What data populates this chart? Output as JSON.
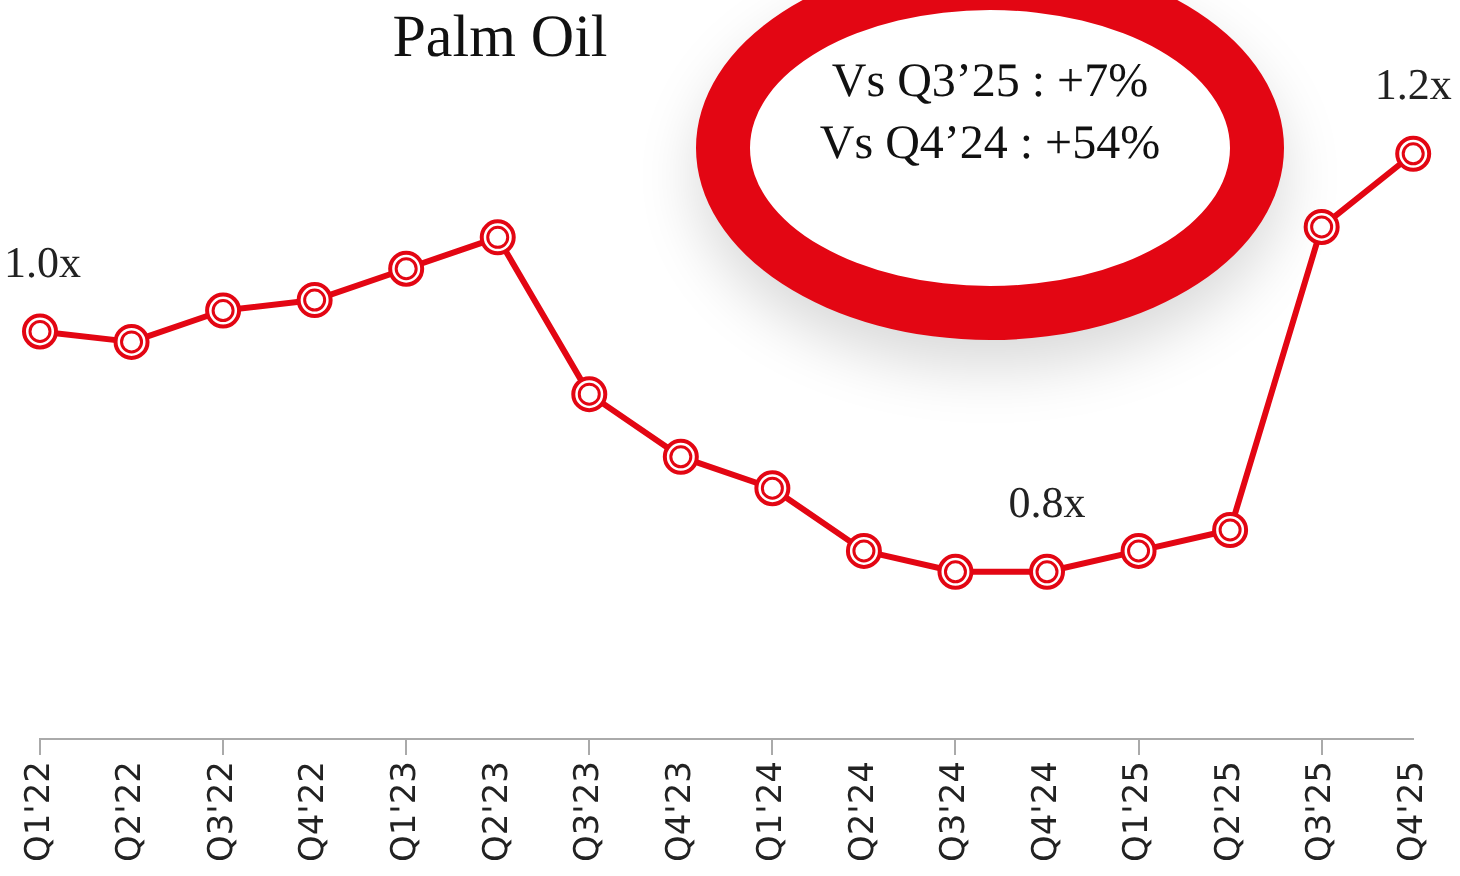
{
  "chart_data": {
    "type": "line",
    "title": "Palm Oil",
    "categories": [
      "Q1'22",
      "Q2'22",
      "Q3'22",
      "Q4'22",
      "Q1'23",
      "Q2'23",
      "Q3'23",
      "Q4'23",
      "Q1'24",
      "Q2'24",
      "Q3'24",
      "Q4'24",
      "Q1'25",
      "Q2'25",
      "Q3'25",
      "Q4'25"
    ],
    "series": [
      {
        "color": "#e30613",
        "values": [
          1.02,
          1.01,
          1.04,
          1.05,
          1.08,
          1.11,
          0.96,
          0.9,
          0.87,
          0.81,
          0.79,
          0.79,
          0.81,
          0.83,
          1.12,
          1.19
        ],
        "value_labels": [
          "1.0x",
          null,
          null,
          null,
          null,
          null,
          null,
          null,
          null,
          null,
          null,
          "0.8x",
          null,
          null,
          null,
          "1.2x"
        ]
      }
    ],
    "annotations": [
      "Vs Q3’25 : +7%",
      "Vs Q4’24 : +54%"
    ],
    "marker": "circle",
    "grid": false,
    "legend": false,
    "tick_labels": "x"
  }
}
